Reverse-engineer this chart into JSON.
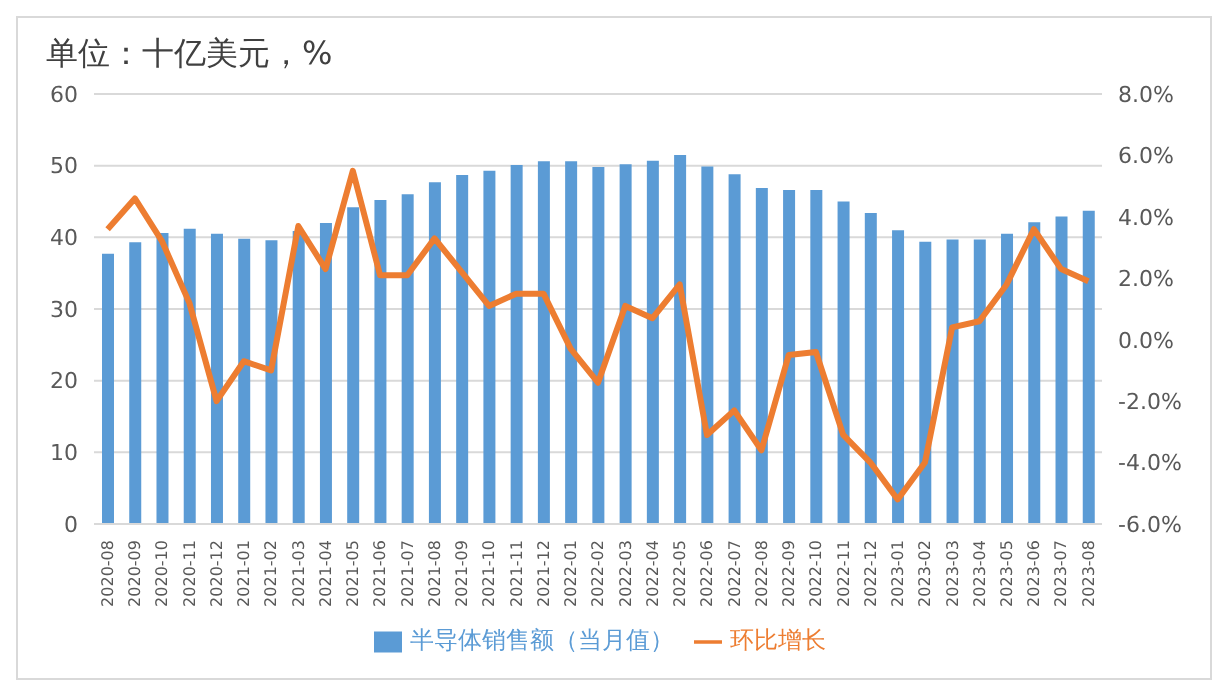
{
  "chart_data": {
    "type": "bar",
    "title": "单位：十亿美元，%",
    "categories": [
      "2020-08",
      "2020-09",
      "2020-10",
      "2020-11",
      "2020-12",
      "2021-01",
      "2021-02",
      "2021-03",
      "2021-04",
      "2021-05",
      "2021-06",
      "2021-07",
      "2021-08",
      "2021-09",
      "2021-10",
      "2021-11",
      "2021-12",
      "2022-01",
      "2022-02",
      "2022-03",
      "2022-04",
      "2022-05",
      "2022-06",
      "2022-07",
      "2022-08",
      "2022-09",
      "2022-10",
      "2022-11",
      "2022-12",
      "2023-01",
      "2023-02",
      "2023-03",
      "2023-04",
      "2023-05",
      "2023-06",
      "2023-07",
      "2023-08"
    ],
    "series": [
      {
        "name": "半导体销售额（当月值）",
        "color": "#5b9bd5",
        "values": [
          37.7,
          39.3,
          40.6,
          41.2,
          40.5,
          39.8,
          39.6,
          40.9,
          42.0,
          44.2,
          45.2,
          46.0,
          47.7,
          48.7,
          49.3,
          50.1,
          50.6,
          50.6,
          49.8,
          50.2,
          50.7,
          51.5,
          49.9,
          48.8,
          46.9,
          46.6,
          46.6,
          45.0,
          43.4,
          41.0,
          39.4,
          39.7,
          39.7,
          40.5,
          42.1,
          42.9,
          43.7
        ]
      },
      {
        "name": "环比增长",
        "type": "line",
        "axis": "y2",
        "color": "#ed7d31",
        "values": [
          3.6,
          4.6,
          3.2,
          1.2,
          -2.0,
          -0.7,
          -1.0,
          3.7,
          2.3,
          5.5,
          2.1,
          2.1,
          3.3,
          2.2,
          1.1,
          1.5,
          1.5,
          -0.3,
          -1.4,
          1.1,
          0.7,
          1.8,
          -3.1,
          -2.3,
          -3.6,
          -0.5,
          -0.4,
          -3.1,
          -4.0,
          -5.2,
          -4.0,
          0.4,
          0.6,
          1.8,
          3.6,
          2.3,
          1.9
        ]
      }
    ],
    "ylim": [
      0,
      60
    ],
    "yticks": [
      0,
      10,
      20,
      30,
      40,
      50,
      60
    ],
    "y2lim": [
      -6,
      8
    ],
    "y2ticks": [
      {
        "value": -6,
        "label": "-6.0%"
      },
      {
        "value": -4,
        "label": "-4.0%"
      },
      {
        "value": -2,
        "label": "-2.0%"
      },
      {
        "value": 0,
        "label": "0.0%"
      },
      {
        "value": 2,
        "label": "2.0%"
      },
      {
        "value": 4,
        "label": "4.0%"
      },
      {
        "value": 6,
        "label": "6.0%"
      },
      {
        "value": 8,
        "label": "8.0%"
      }
    ],
    "grid": "y",
    "legend": "bottom",
    "marker": "none",
    "line_style": "solid"
  }
}
